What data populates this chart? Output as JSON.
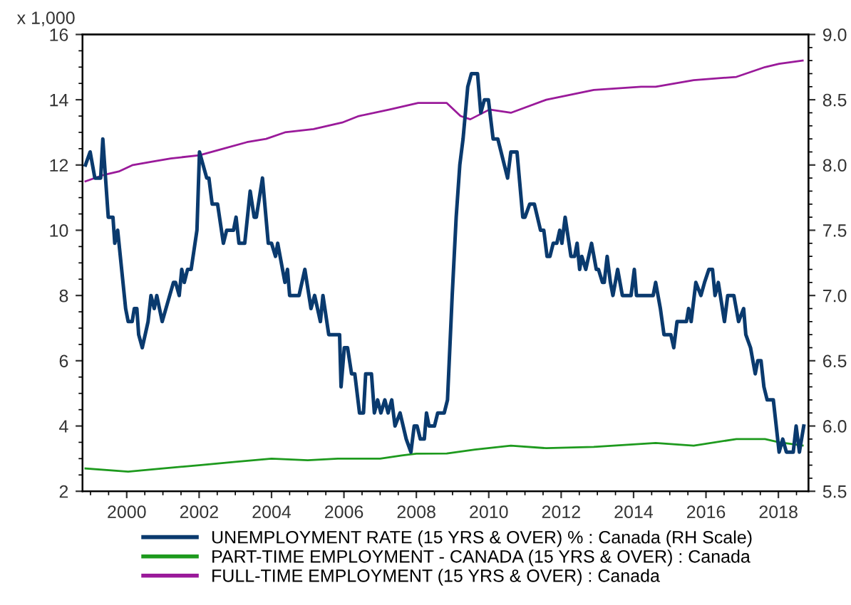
{
  "chart_data": {
    "type": "line",
    "ylabel": "x 1,000",
    "xlim": [
      1998.78,
      2018.83
    ],
    "xticks": [
      2000,
      2002,
      2004,
      2006,
      2008,
      2010,
      2012,
      2014,
      2016,
      2018
    ],
    "ylim": [
      2,
      16
    ],
    "yticks": [
      2,
      4,
      6,
      8,
      10,
      12,
      14,
      16
    ],
    "y2lim": [
      5.5,
      9.0
    ],
    "y2ticks": [
      5.5,
      {
        "value": 6,
        "label": "6.0"
      },
      6.5,
      {
        "value": 7,
        "label": "7.0"
      },
      7.5,
      {
        "value": 8,
        "label": "8.0"
      },
      8.5,
      {
        "value": 9,
        "label": "9.0"
      }
    ],
    "grid": false,
    "legend": "bottom",
    "marker": "none",
    "line_style": "solid",
    "series": [
      {
        "name": "UNEMPLOYMENT RATE (15 YRS & OVER) % : Canada (RH Scale)",
        "color": "#0a3a6e",
        "axis": "y2",
        "x": [
          1998.86,
          1998.99,
          1999.12,
          1999.28,
          1999.34,
          1999.49,
          1999.62,
          1999.67,
          1999.75,
          1999.97,
          2000.04,
          2000.15,
          2000.21,
          2000.28,
          2000.33,
          2000.43,
          2000.59,
          2000.67,
          2000.76,
          2000.83,
          2000.98,
          2001.29,
          2001.35,
          2001.45,
          2001.52,
          2001.59,
          2001.68,
          2001.78,
          2001.94,
          2002.01,
          2002.11,
          2002.21,
          2002.27,
          2002.36,
          2002.51,
          2002.67,
          2002.76,
          2002.95,
          2003.02,
          2003.1,
          2003.26,
          2003.41,
          2003.52,
          2003.58,
          2003.75,
          2003.91,
          2004.0,
          2004.11,
          2004.17,
          2004.37,
          2004.44,
          2004.5,
          2004.76,
          2004.92,
          2005.09,
          2005.19,
          2005.35,
          2005.42,
          2005.58,
          2005.88,
          2005.92,
          2006.01,
          2006.1,
          2006.21,
          2006.3,
          2006.43,
          2006.54,
          2006.6,
          2006.76,
          2006.84,
          2006.93,
          2007.02,
          2007.13,
          2007.22,
          2007.32,
          2007.41,
          2007.55,
          2007.72,
          2007.85,
          2007.94,
          2008.02,
          2008.11,
          2008.22,
          2008.28,
          2008.35,
          2008.5,
          2008.59,
          2008.77,
          2008.86,
          2008.99,
          2009.1,
          2009.2,
          2009.29,
          2009.42,
          2009.52,
          2009.69,
          2009.78,
          2009.88,
          2009.99,
          2010.12,
          2010.25,
          2010.52,
          2010.61,
          2010.78,
          2010.94,
          2011.0,
          2011.13,
          2011.26,
          2011.43,
          2011.52,
          2011.61,
          2011.69,
          2011.78,
          2011.88,
          2011.96,
          2012.02,
          2012.11,
          2012.27,
          2012.37,
          2012.44,
          2012.51,
          2012.57,
          2012.68,
          2012.84,
          2012.97,
          2013.03,
          2013.14,
          2013.19,
          2013.27,
          2013.36,
          2013.43,
          2013.56,
          2013.69,
          2013.93,
          2014.02,
          2014.08,
          2014.54,
          2014.61,
          2014.74,
          2014.84,
          2015.03,
          2015.11,
          2015.2,
          2015.46,
          2015.52,
          2015.59,
          2015.72,
          2015.86,
          2015.96,
          2016.08,
          2016.18,
          2016.25,
          2016.34,
          2016.51,
          2016.6,
          2016.77,
          2016.9,
          2017.04,
          2017.1,
          2017.23,
          2017.36,
          2017.43,
          2017.52,
          2017.6,
          2017.69,
          2017.86,
          2018.02,
          2018.12,
          2018.22,
          2018.41,
          2018.49,
          2018.58,
          2018.7
        ],
        "values": [
          8.0,
          8.1,
          7.9,
          7.9,
          8.2,
          7.6,
          7.6,
          7.4,
          7.5,
          6.9,
          6.8,
          6.8,
          6.9,
          6.9,
          6.7,
          6.6,
          6.8,
          7.0,
          6.9,
          7.0,
          6.8,
          7.1,
          7.1,
          7.0,
          7.2,
          7.1,
          7.2,
          7.2,
          7.5,
          8.1,
          8.0,
          7.9,
          7.9,
          7.7,
          7.7,
          7.4,
          7.5,
          7.5,
          7.6,
          7.4,
          7.4,
          7.8,
          7.6,
          7.6,
          7.9,
          7.4,
          7.4,
          7.3,
          7.4,
          7.1,
          7.2,
          7.0,
          7.0,
          7.2,
          6.9,
          7.0,
          6.8,
          7.0,
          6.7,
          6.7,
          6.3,
          6.6,
          6.6,
          6.4,
          6.4,
          6.1,
          6.1,
          6.4,
          6.4,
          6.1,
          6.2,
          6.1,
          6.2,
          6.1,
          6.2,
          6.0,
          6.1,
          5.9,
          5.8,
          6.0,
          6.0,
          5.9,
          5.9,
          6.1,
          6.0,
          6.0,
          6.1,
          6.1,
          6.2,
          7.0,
          7.6,
          8.0,
          8.2,
          8.6,
          8.7,
          8.7,
          8.4,
          8.5,
          8.5,
          8.2,
          8.2,
          7.9,
          8.1,
          8.1,
          7.6,
          7.6,
          7.7,
          7.7,
          7.5,
          7.5,
          7.3,
          7.3,
          7.4,
          7.4,
          7.5,
          7.4,
          7.6,
          7.3,
          7.3,
          7.4,
          7.2,
          7.3,
          7.2,
          7.4,
          7.2,
          7.2,
          7.1,
          7.1,
          7.3,
          7.1,
          7.0,
          7.2,
          7.0,
          7.0,
          7.2,
          7.0,
          7.0,
          7.1,
          6.9,
          6.7,
          6.7,
          6.6,
          6.8,
          6.8,
          6.9,
          6.8,
          7.1,
          7.0,
          7.1,
          7.2,
          7.2,
          7.0,
          7.1,
          6.8,
          7.0,
          7.0,
          6.8,
          6.9,
          6.7,
          6.6,
          6.4,
          6.5,
          6.5,
          6.3,
          6.2,
          6.2,
          5.8,
          5.9,
          5.8,
          5.8,
          6.0,
          5.8,
          6.0
        ]
      },
      {
        "name": "PART-TIME EMPLOYMENT - CANADA (15 YRS & OVER) : Canada",
        "color": "#1e9a1e",
        "x": [
          1998.86,
          2000.04,
          2001.0,
          2002.0,
          2003.0,
          2004.0,
          2005.0,
          2005.83,
          2007.0,
          2007.6,
          2008.0,
          2008.84,
          2009.62,
          2010.61,
          2011.59,
          2012.9,
          2014.61,
          2015.66,
          2016.84,
          2017.63,
          2018.02,
          2018.67
        ],
        "values": [
          2.7,
          2.6,
          2.7,
          2.8,
          2.9,
          3.0,
          2.95,
          3.0,
          3.0,
          3.1,
          3.15,
          3.16,
          3.28,
          3.4,
          3.32,
          3.36,
          3.48,
          3.4,
          3.6,
          3.6,
          3.5,
          3.4
        ]
      },
      {
        "name": "FULL-TIME EMPLOYMENT (15 YRS & OVER) : Canada",
        "color": "#9a1a9a",
        "x": [
          1998.86,
          1999.38,
          1999.78,
          2000.17,
          2000.7,
          2001.22,
          2002.01,
          2002.67,
          2003.32,
          2003.85,
          2004.37,
          2005.16,
          2005.95,
          2006.41,
          2007.26,
          2008.05,
          2008.84,
          2009.22,
          2009.49,
          2010.02,
          2010.61,
          2011.59,
          2012.9,
          2014.21,
          2014.61,
          2015.66,
          2016.84,
          2017.63,
          2018.02,
          2018.67
        ],
        "values": [
          11.5,
          11.7,
          11.8,
          12.0,
          12.1,
          12.2,
          12.3,
          12.5,
          12.7,
          12.8,
          13.0,
          13.1,
          13.3,
          13.5,
          13.7,
          13.9,
          13.9,
          13.5,
          13.4,
          13.7,
          13.6,
          14.0,
          14.3,
          14.4,
          14.4,
          14.6,
          14.7,
          15.0,
          15.1,
          15.2
        ]
      }
    ]
  }
}
